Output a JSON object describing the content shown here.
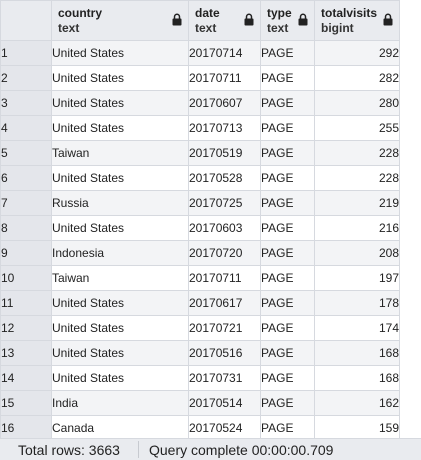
{
  "columns": [
    {
      "name": "country",
      "type": "text",
      "icon": "lock-icon"
    },
    {
      "name": "date",
      "type": "text",
      "icon": "lock-icon"
    },
    {
      "name": "type",
      "type": "text",
      "icon": "lock-icon"
    },
    {
      "name": "totalvisits",
      "type": "bigint",
      "icon": "lock-icon"
    }
  ],
  "rows": [
    {
      "num": "1",
      "country": "United States",
      "date": "20170714",
      "type": "PAGE",
      "totalvisits": "292"
    },
    {
      "num": "2",
      "country": "United States",
      "date": "20170711",
      "type": "PAGE",
      "totalvisits": "282"
    },
    {
      "num": "3",
      "country": "United States",
      "date": "20170607",
      "type": "PAGE",
      "totalvisits": "280"
    },
    {
      "num": "4",
      "country": "United States",
      "date": "20170713",
      "type": "PAGE",
      "totalvisits": "255"
    },
    {
      "num": "5",
      "country": "Taiwan",
      "date": "20170519",
      "type": "PAGE",
      "totalvisits": "228"
    },
    {
      "num": "6",
      "country": "United States",
      "date": "20170528",
      "type": "PAGE",
      "totalvisits": "228"
    },
    {
      "num": "7",
      "country": "Russia",
      "date": "20170725",
      "type": "PAGE",
      "totalvisits": "219"
    },
    {
      "num": "8",
      "country": "United States",
      "date": "20170603",
      "type": "PAGE",
      "totalvisits": "216"
    },
    {
      "num": "9",
      "country": "Indonesia",
      "date": "20170720",
      "type": "PAGE",
      "totalvisits": "208"
    },
    {
      "num": "10",
      "country": "Taiwan",
      "date": "20170711",
      "type": "PAGE",
      "totalvisits": "197"
    },
    {
      "num": "11",
      "country": "United States",
      "date": "20170617",
      "type": "PAGE",
      "totalvisits": "178"
    },
    {
      "num": "12",
      "country": "United States",
      "date": "20170721",
      "type": "PAGE",
      "totalvisits": "174"
    },
    {
      "num": "13",
      "country": "United States",
      "date": "20170516",
      "type": "PAGE",
      "totalvisits": "168"
    },
    {
      "num": "14",
      "country": "United States",
      "date": "20170731",
      "type": "PAGE",
      "totalvisits": "168"
    },
    {
      "num": "15",
      "country": "India",
      "date": "20170514",
      "type": "PAGE",
      "totalvisits": "162"
    },
    {
      "num": "16",
      "country": "Canada",
      "date": "20170524",
      "type": "PAGE",
      "totalvisits": "159"
    }
  ],
  "status": {
    "total_rows": "Total rows: 3663",
    "query": "Query complete 00:00:00.709"
  },
  "colors": {
    "header_bg": "#e9ebef",
    "stripe": "#f3f4f6",
    "border": "#d6d9df"
  }
}
